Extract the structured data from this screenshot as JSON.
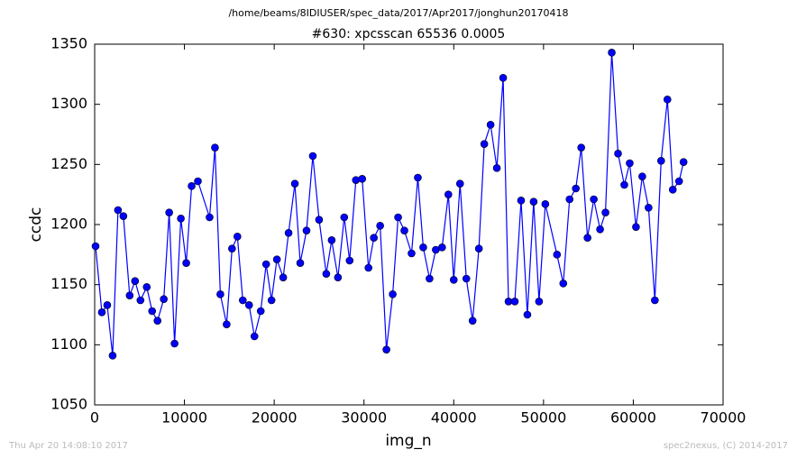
{
  "chart_data": {
    "type": "line",
    "suptitle": "/home/beams/8IDIUSER/spec_data/2017/Apr2017/jonghun20170418",
    "title": "#630: xpcsscan 65536 0.0005",
    "xlabel": "img_n",
    "ylabel": "ccdc",
    "footer_left": "Thu Apr 20 14:08:10 2017",
    "footer_right": "spec2nexus, (C) 2014-2017",
    "xlim": [
      0,
      70000
    ],
    "xticks": [
      0,
      10000,
      20000,
      30000,
      40000,
      50000,
      60000,
      70000
    ],
    "ylim": [
      1050,
      1350
    ],
    "yticks": [
      1050,
      1100,
      1150,
      1200,
      1250,
      1300,
      1350
    ],
    "x": [
      100,
      800,
      1400,
      2000,
      2600,
      3200,
      3900,
      4500,
      5100,
      5800,
      6400,
      7000,
      7700,
      8300,
      8900,
      9600,
      10200,
      10800,
      11500,
      12800,
      13400,
      14000,
      14700,
      15300,
      15900,
      16500,
      17200,
      17800,
      18500,
      19100,
      19700,
      20300,
      21000,
      21600,
      22300,
      22900,
      23600,
      24300,
      25000,
      25800,
      26400,
      27100,
      27800,
      28400,
      29100,
      29800,
      30500,
      31100,
      31800,
      32500,
      33200,
      33800,
      34500,
      35300,
      36000,
      36600,
      37300,
      38000,
      38700,
      39400,
      40000,
      40700,
      41400,
      42100,
      42800,
      43400,
      44100,
      44800,
      45500,
      46100,
      46800,
      47500,
      48200,
      48900,
      49500,
      50200,
      51500,
      52200,
      52900,
      53600,
      54200,
      54900,
      55600,
      56300,
      56900,
      57600,
      58300,
      59000,
      59600,
      60300,
      61000,
      61700,
      62400,
      63100,
      63800,
      64400,
      65100,
      65600
    ],
    "series": [
      {
        "color": "#0000ff",
        "values": [
          1182,
          1127,
          1133,
          1091,
          1212,
          1207,
          1141,
          1153,
          1137,
          1148,
          1128,
          1120,
          1138,
          1210,
          1101,
          1205,
          1168,
          1232,
          1236,
          1206,
          1264,
          1142,
          1117,
          1180,
          1190,
          1137,
          1133,
          1107,
          1128,
          1167,
          1137,
          1171,
          1156,
          1193,
          1234,
          1168,
          1195,
          1257,
          1204,
          1159,
          1187,
          1156,
          1206,
          1170,
          1237,
          1238,
          1164,
          1189,
          1199,
          1096,
          1142,
          1206,
          1195,
          1176,
          1239,
          1181,
          1155,
          1179,
          1181,
          1225,
          1154,
          1234,
          1155,
          1120,
          1180,
          1267,
          1283,
          1247,
          1322,
          1136,
          1136,
          1220,
          1125,
          1219,
          1136,
          1217,
          1175,
          1151,
          1221,
          1230,
          1264,
          1189,
          1221,
          1196,
          1210,
          1343,
          1259,
          1233,
          1251,
          1198,
          1240,
          1214,
          1137,
          1253,
          1304,
          1229,
          1236,
          1252
        ]
      }
    ]
  }
}
